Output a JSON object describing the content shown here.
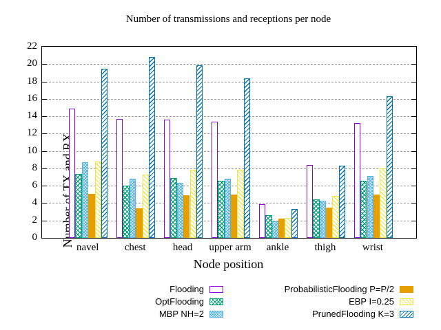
{
  "title": "Number of transmissions and receptions per node",
  "chart_data": {
    "type": "bar",
    "title": "Number of transmissions and receptions per node",
    "xlabel": "Node position",
    "ylabel": "Number of TX and RX",
    "ylim": [
      0,
      22
    ],
    "y_ticks": [
      0,
      2,
      4,
      6,
      8,
      10,
      12,
      14,
      16,
      18,
      20,
      22
    ],
    "grid": true,
    "legend_position": "bottom-two-columns",
    "categories": [
      "navel",
      "chest",
      "head",
      "upper arm",
      "ankle",
      "thigh",
      "wrist"
    ],
    "series": [
      {
        "name": "Flooding",
        "color": "#9400d3",
        "pattern": "empty",
        "values": [
          14.9,
          13.7,
          13.6,
          13.4,
          3.9,
          8.4,
          13.2
        ]
      },
      {
        "name": "OptFlooding",
        "color": "#009e73",
        "pattern": "crosshatch",
        "values": [
          7.4,
          6.0,
          6.9,
          6.6,
          2.6,
          4.4,
          6.6
        ]
      },
      {
        "name": "MBP NH=2",
        "color": "#56b4e9",
        "pattern": "fine-crosshatch",
        "values": [
          8.7,
          6.8,
          6.3,
          6.8,
          1.9,
          4.3,
          7.1
        ]
      },
      {
        "name": "ProbabilisticFlooding P=P/2",
        "color": "#e69f00",
        "pattern": "solid",
        "values": [
          5.1,
          3.4,
          4.9,
          5.0,
          2.2,
          3.5,
          5.0
        ]
      },
      {
        "name": "EBP I=0.25",
        "color": "#f0e442",
        "pattern": "diag-down",
        "values": [
          8.8,
          7.3,
          7.8,
          7.8,
          2.3,
          4.8,
          8.0
        ]
      },
      {
        "name": "PrunedFlooding K=3",
        "color": "#0072b2",
        "pattern": "diag-up",
        "values": [
          19.5,
          20.8,
          19.9,
          18.4,
          3.3,
          8.3,
          16.3
        ]
      }
    ],
    "legend_columns": {
      "left": [
        "Flooding",
        "OptFlooding",
        "MBP NH=2"
      ],
      "right": [
        "ProbabilisticFlooding P=P/2",
        "EBP I=0.25",
        "PrunedFlooding K=3"
      ]
    }
  }
}
